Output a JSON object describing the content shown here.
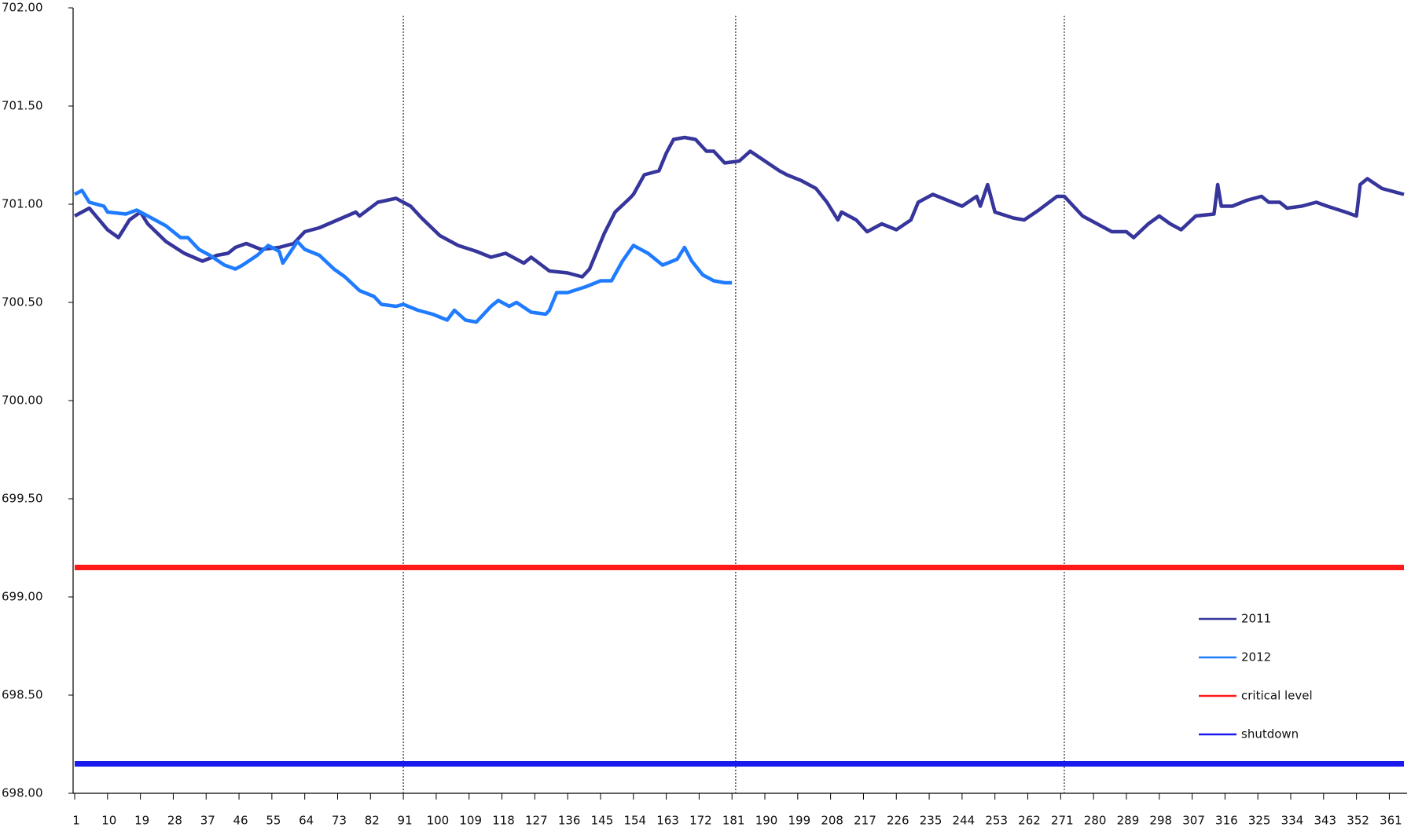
{
  "chart_data": {
    "type": "line",
    "xlim": [
      1,
      365
    ],
    "xticks": [
      1,
      10,
      19,
      28,
      37,
      46,
      55,
      64,
      73,
      82,
      91,
      100,
      109,
      118,
      127,
      136,
      145,
      154,
      163,
      172,
      181,
      190,
      199,
      208,
      217,
      226,
      235,
      244,
      253,
      262,
      271,
      280,
      289,
      298,
      307,
      316,
      325,
      334,
      343,
      352,
      361
    ],
    "ylim": [
      698,
      702
    ],
    "yticks": [
      {
        "value": 698,
        "label": "698.00"
      },
      {
        "value": 698.5,
        "label": "698.50"
      },
      {
        "value": 699,
        "label": "699.00"
      },
      {
        "value": 699.5,
        "label": "699.50"
      },
      {
        "value": 700,
        "label": "700.00"
      },
      {
        "value": 700.5,
        "label": "700.50"
      },
      {
        "value": 701,
        "label": "701.00"
      },
      {
        "value": 701.5,
        "label": "701.50"
      },
      {
        "value": 702,
        "label": "702.00"
      }
    ],
    "vlines": [
      91,
      182,
      272
    ],
    "legend": "bottom-right",
    "series": [
      {
        "name": "2011",
        "color": "#36359b",
        "x": [
          1,
          5,
          10,
          13,
          16,
          19,
          21,
          26,
          31,
          36,
          40,
          43,
          45,
          48,
          52,
          57,
          61,
          64,
          68,
          73,
          78,
          79,
          84,
          89,
          93,
          96,
          101,
          106,
          111,
          115,
          119,
          124,
          126,
          131,
          136,
          140,
          142,
          146,
          149,
          153,
          154,
          157,
          161,
          163,
          165,
          168,
          171,
          174,
          176,
          179,
          183,
          186,
          190,
          194,
          196,
          200,
          204,
          207,
          210,
          211,
          215,
          218,
          222,
          226,
          230,
          232,
          236,
          240,
          244,
          248,
          249,
          251,
          253,
          258,
          261,
          265,
          270,
          272,
          277,
          281,
          285,
          289,
          291,
          295,
          298,
          301,
          304,
          308,
          313,
          314,
          315,
          318,
          322,
          326,
          328,
          331,
          333,
          337,
          341,
          344,
          349,
          352,
          353,
          355,
          359,
          361,
          365
        ],
        "values": [
          700.94,
          700.98,
          700.87,
          700.83,
          700.92,
          700.96,
          700.9,
          700.81,
          700.75,
          700.71,
          700.74,
          700.75,
          700.78,
          700.8,
          700.77,
          700.78,
          700.8,
          700.86,
          700.88,
          700.92,
          700.96,
          700.94,
          701.01,
          701.03,
          700.99,
          700.93,
          700.84,
          700.79,
          700.76,
          700.73,
          700.75,
          700.7,
          700.73,
          700.66,
          700.65,
          700.63,
          700.67,
          700.85,
          700.96,
          701.03,
          701.05,
          701.15,
          701.17,
          701.26,
          701.33,
          701.34,
          701.33,
          701.27,
          701.27,
          701.21,
          701.22,
          701.27,
          701.22,
          701.17,
          701.15,
          701.12,
          701.08,
          701.01,
          700.92,
          700.96,
          700.92,
          700.86,
          700.9,
          700.87,
          700.92,
          701.01,
          701.05,
          701.02,
          700.99,
          701.04,
          700.99,
          701.1,
          700.96,
          700.93,
          700.92,
          700.97,
          701.04,
          701.04,
          700.94,
          700.9,
          700.86,
          700.86,
          700.83,
          700.9,
          700.94,
          700.9,
          700.87,
          700.94,
          700.95,
          701.1,
          700.99,
          700.99,
          701.02,
          701.04,
          701.01,
          701.01,
          700.98,
          700.99,
          701.01,
          700.99,
          700.96,
          700.94,
          701.1,
          701.13,
          701.08,
          701.07,
          701.05
        ]
      },
      {
        "name": "2012",
        "color": "#1f7bff",
        "x": [
          1,
          3,
          5,
          9,
          10,
          15,
          18,
          20,
          22,
          26,
          30,
          32,
          35,
          38,
          42,
          45,
          47,
          51,
          54,
          57,
          58,
          62,
          64,
          68,
          72,
          75,
          79,
          83,
          85,
          89,
          91,
          95,
          99,
          103,
          105,
          108,
          111,
          115,
          117,
          120,
          122,
          126,
          130,
          131,
          133,
          136,
          141,
          145,
          148,
          151,
          154,
          158,
          162,
          166,
          168,
          170,
          173,
          176,
          179,
          181
        ],
        "values": [
          701.05,
          701.07,
          701.01,
          700.99,
          700.96,
          700.95,
          700.97,
          700.95,
          700.93,
          700.89,
          700.83,
          700.83,
          700.77,
          700.74,
          700.69,
          700.67,
          700.69,
          700.74,
          700.79,
          700.76,
          700.7,
          700.81,
          700.77,
          700.74,
          700.67,
          700.63,
          700.56,
          700.53,
          700.49,
          700.48,
          700.49,
          700.46,
          700.44,
          700.41,
          700.46,
          700.41,
          700.4,
          700.48,
          700.51,
          700.48,
          700.5,
          700.45,
          700.44,
          700.46,
          700.55,
          700.55,
          700.58,
          700.61,
          700.61,
          700.71,
          700.79,
          700.75,
          700.69,
          700.72,
          700.78,
          700.71,
          700.64,
          700.61,
          700.6,
          700.6
        ]
      },
      {
        "name": "critical level",
        "color": "#ff1a1a",
        "value": 699.15
      },
      {
        "name": "shutdown",
        "color": "#1a1aee",
        "value": 698.15
      }
    ]
  }
}
